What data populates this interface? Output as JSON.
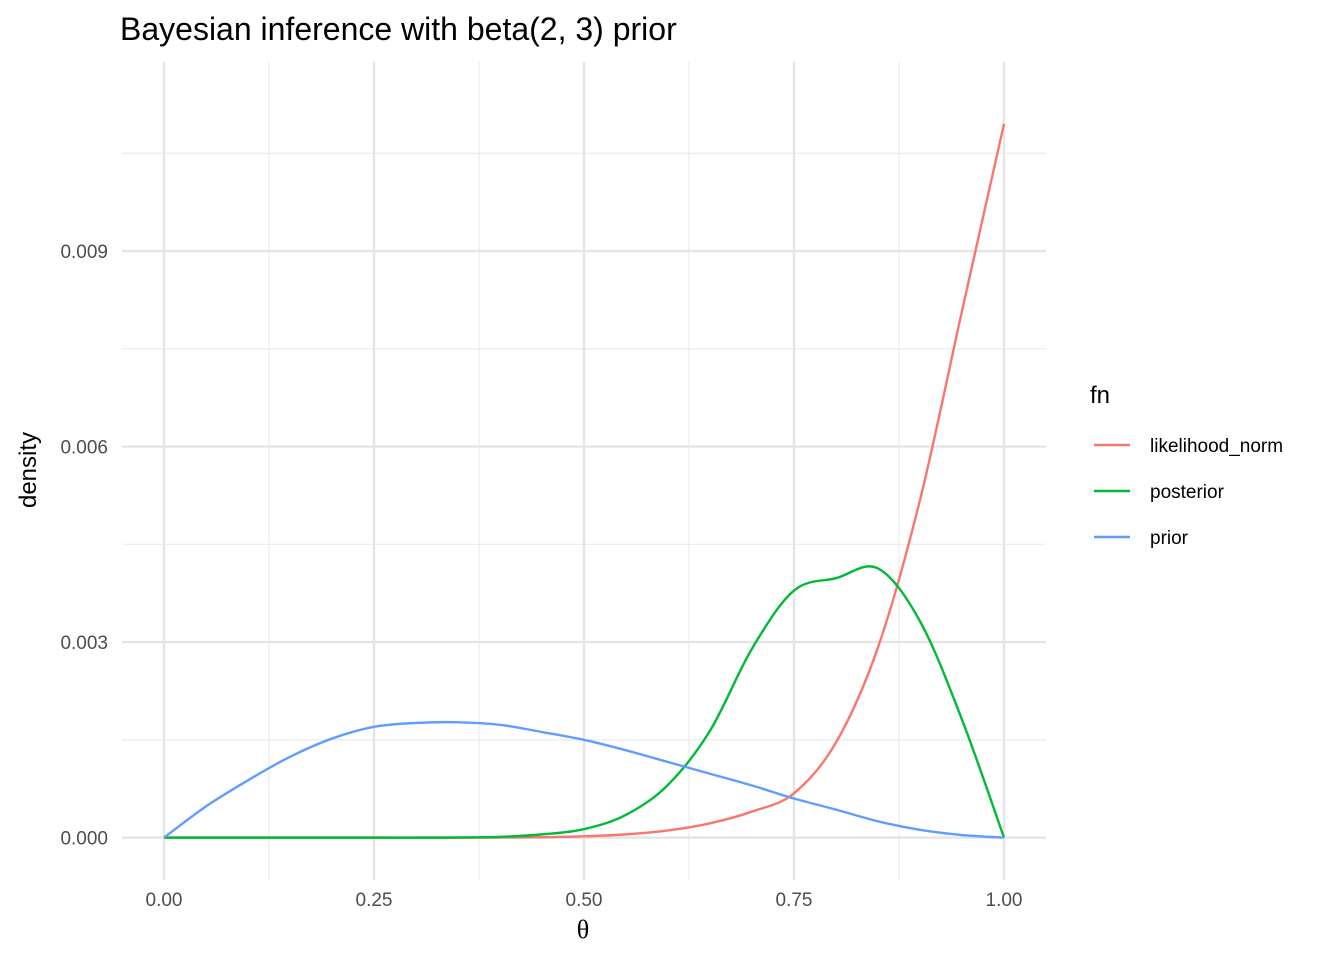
{
  "chart_data": {
    "type": "line",
    "title": "Bayesian inference with beta(2, 3) prior",
    "xlabel": "θ",
    "ylabel": "density",
    "xlim": [
      -0.05,
      1.05
    ],
    "ylim": [
      -0.00065,
      0.0119
    ],
    "x_ticks": [
      0,
      0.25,
      0.5,
      0.75,
      1
    ],
    "x_tick_labels": [
      "0.00",
      "0.25",
      "0.50",
      "0.75",
      "1.00"
    ],
    "y_ticks": [
      0,
      0.003,
      0.006,
      0.009
    ],
    "y_tick_labels": [
      "0.000",
      "0.003",
      "0.006",
      "0.009"
    ],
    "grid": true,
    "legend": {
      "title": "fn",
      "position": "right"
    },
    "x": [
      0,
      0.05,
      0.1,
      0.15,
      0.2,
      0.25,
      0.3,
      0.35,
      0.4,
      0.45,
      0.5,
      0.55,
      0.6,
      0.65,
      0.7,
      0.75,
      0.8,
      0.85,
      0.9,
      0.95,
      1.0
    ],
    "series": [
      {
        "name": "likelihood_norm",
        "color": "#f8766d",
        "values": [
          0,
          0,
          0,
          0,
          0,
          0,
          0,
          0,
          2e-06,
          7e-06,
          2e-05,
          5e-05,
          0.00011,
          0.00022,
          0.0004,
          0.00068,
          0.00146,
          0.00292,
          0.00518,
          0.00808,
          0.01095
        ]
      },
      {
        "name": "posterior",
        "color": "#00ba38",
        "values": [
          0,
          0,
          0,
          0,
          0,
          0,
          0,
          2e-06,
          1.2e-05,
          5e-05,
          0.00013,
          0.00035,
          0.00081,
          0.00164,
          0.0029,
          0.00379,
          0.00398,
          0.00413,
          0.00332,
          0.00181,
          0
        ]
      },
      {
        "name": "prior",
        "color": "#619cff",
        "values": [
          0,
          0.00048,
          0.00088,
          0.00124,
          0.00152,
          0.0017,
          0.00176,
          0.00177,
          0.00173,
          0.00162,
          0.0015,
          0.00134,
          0.00116,
          0.00098,
          0.0008,
          0.0006,
          0.00043,
          0.00025,
          0.00012,
          4e-05,
          0
        ]
      }
    ]
  }
}
